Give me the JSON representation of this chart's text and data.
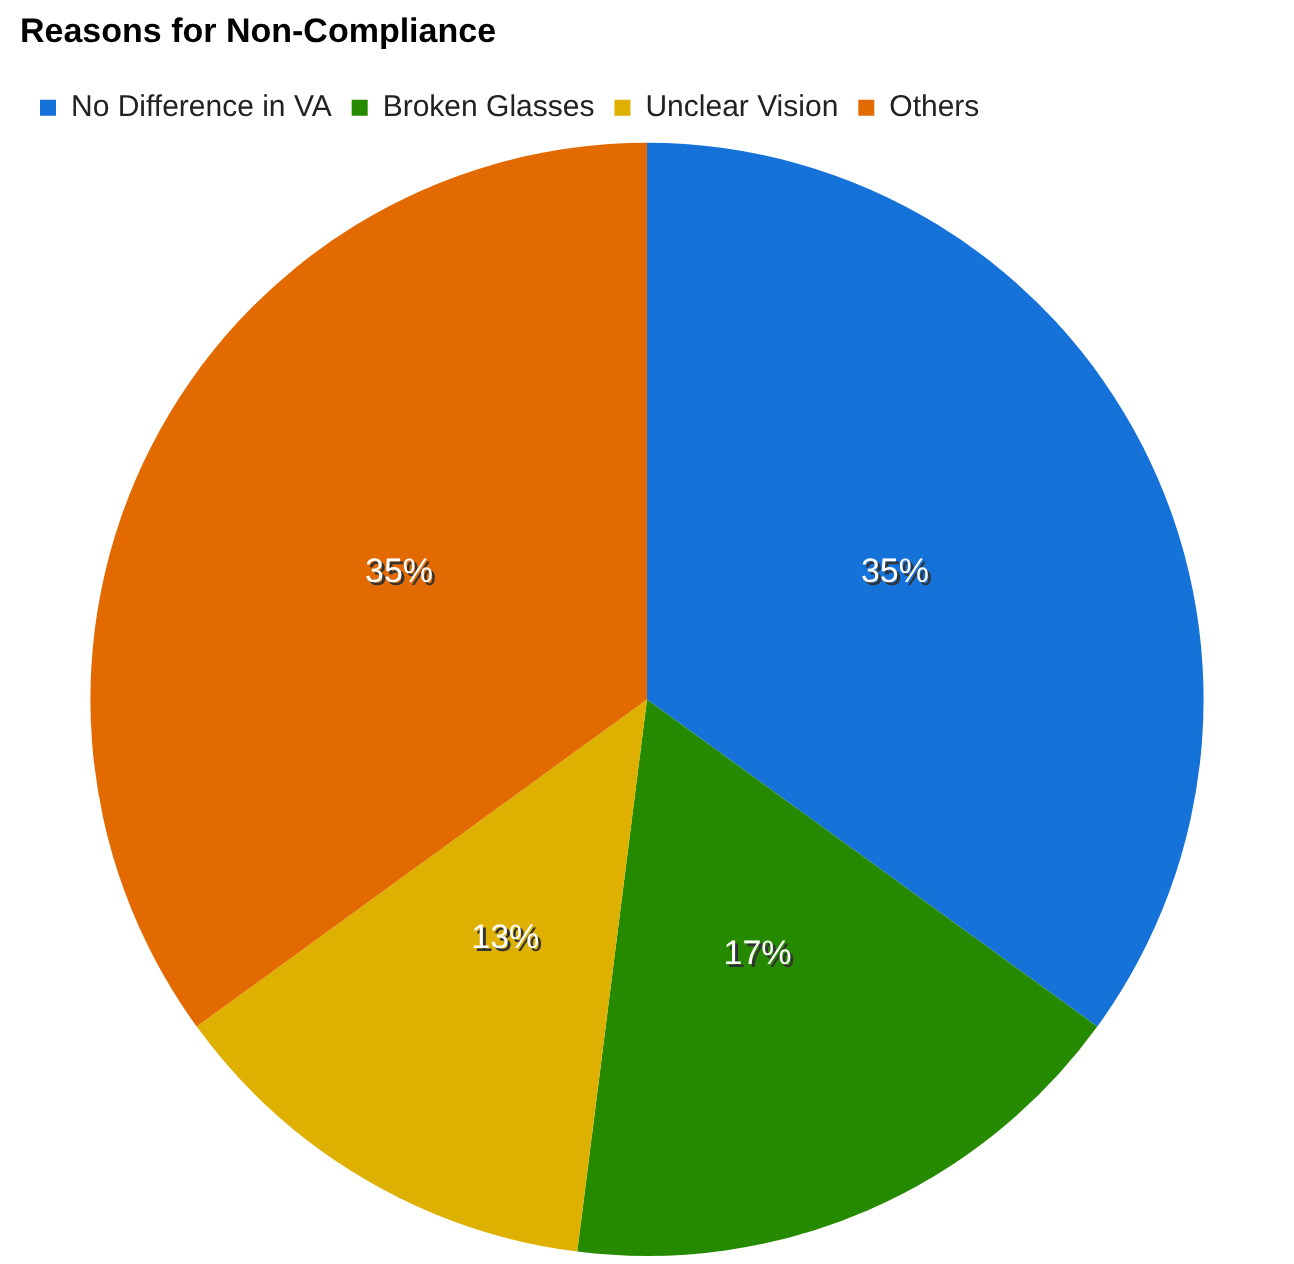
{
  "chart_data": {
    "type": "pie",
    "title": "Reasons for Non-Compliance",
    "categories": [
      "No Difference in VA",
      "Broken Glasses",
      "Unclear Vision",
      "Others"
    ],
    "values": [
      35,
      17,
      13,
      35
    ],
    "colors": [
      "#1572d8",
      "#268a00",
      "#deb000",
      "#e26a00"
    ],
    "value_labels": [
      "35%",
      "17%",
      "13%",
      "35%"
    ],
    "legend": "top"
  }
}
